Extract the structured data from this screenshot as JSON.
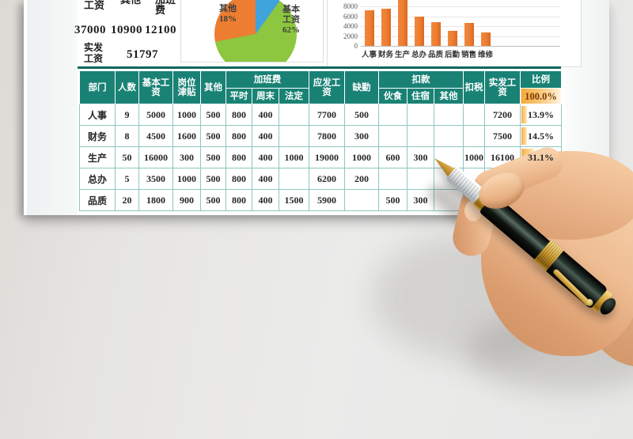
{
  "summary": {
    "header_labels": [
      "基本工资",
      "其他",
      "加班费"
    ],
    "values": [
      "37000",
      "10900",
      "12100"
    ],
    "total_label": "实发工资",
    "total_value": "51797"
  },
  "chart_data": [
    {
      "type": "pie",
      "slices": [
        {
          "label": "加班费",
          "pct": 20,
          "color": "#3fa3dc"
        },
        {
          "label": "基本工资",
          "pct": 62,
          "color": "#8dc63f"
        },
        {
          "label": "其他",
          "pct": 18,
          "color": "#ed7d31"
        }
      ],
      "callouts": {
        "other": [
          "其他",
          "18%"
        ],
        "basic": [
          "基本",
          "工资",
          "62%"
        ]
      }
    },
    {
      "type": "bar",
      "categories": [
        "人事",
        "财务",
        "生产",
        "总办",
        "品质",
        "后勤",
        "销售",
        "维修"
      ],
      "values": [
        7200,
        7500,
        16100,
        6000,
        4800,
        3100,
        4600,
        2700
      ],
      "yticks": [
        0,
        2000,
        4000,
        6000,
        8000
      ],
      "ylim": [
        0,
        8800
      ],
      "bar_color": "#ed7d31",
      "grid": true
    }
  ],
  "table": {
    "header_row1": [
      {
        "label": "部门",
        "rs": 2
      },
      {
        "label": "人数",
        "rs": 2
      },
      {
        "label": "基本工资",
        "rs": 2
      },
      {
        "label": "岗位津贴",
        "rs": 2
      },
      {
        "label": "其他",
        "rs": 2
      },
      {
        "label": "加班费",
        "cs": 3
      },
      {
        "label": "应发工资",
        "rs": 2
      },
      {
        "label": "缺勤",
        "rs": 2
      },
      {
        "label": "扣款",
        "cs": 3
      },
      {
        "label": "扣税",
        "rs": 2
      },
      {
        "label": "实发工资",
        "rs": 2
      },
      {
        "label": "比例"
      }
    ],
    "header_row2": [
      "平时",
      "周末",
      "法定",
      "伙食",
      "住宿",
      "其他"
    ],
    "ratio_total": "100.0%",
    "rows": [
      [
        "人事",
        "9",
        "5000",
        "1000",
        "500",
        "800",
        "400",
        "",
        "7700",
        "500",
        "",
        "",
        "",
        "",
        "7200",
        "13.9%"
      ],
      [
        "财务",
        "8",
        "4500",
        "1600",
        "500",
        "800",
        "400",
        "",
        "7800",
        "300",
        "",
        "",
        "",
        "",
        "7500",
        "14.5%"
      ],
      [
        "生产",
        "50",
        "16000",
        "300",
        "500",
        "800",
        "400",
        "1000",
        "19000",
        "1000",
        "600",
        "300",
        "",
        "1000",
        "16100",
        "31.1%"
      ],
      [
        "总办",
        "5",
        "3500",
        "1000",
        "500",
        "800",
        "400",
        "",
        "6200",
        "200",
        "",
        "",
        "",
        "",
        "",
        ""
      ],
      [
        "品质",
        "20",
        "1800",
        "900",
        "500",
        "800",
        "400",
        "1500",
        "5900",
        "",
        "500",
        "300",
        "",
        "",
        "",
        ""
      ]
    ]
  },
  "colors": {
    "header_teal": "#198275",
    "grid_teal": "#8ec7bf",
    "divider_teal": "#0a675b",
    "databar_orange": "#f6b049",
    "bar_orange": "#ed7d31",
    "pie_green": "#8dc63f",
    "pie_orange": "#ed7d31",
    "pie_blue": "#3fa3dc"
  }
}
